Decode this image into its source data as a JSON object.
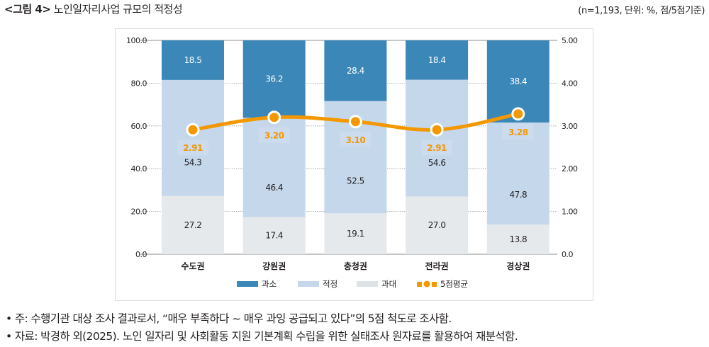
{
  "header": {
    "figure_label": "<그림 4>",
    "title": "노인일자리사업 규모의 적정성",
    "unit_note": "(n=1,193, 단위: %, 점/5점기준)"
  },
  "chart_data": {
    "type": "bar",
    "stacked": true,
    "title": "노인일자리사업 규모의 적정성",
    "categories": [
      "수도권",
      "강원권",
      "충청권",
      "전라권",
      "경상권"
    ],
    "series": [
      {
        "name": "과대",
        "values": [
          27.2,
          17.4,
          19.1,
          27.0,
          13.8
        ],
        "color": "#e6e9eb",
        "label_color": "#231f20"
      },
      {
        "name": "적정",
        "values": [
          54.3,
          46.4,
          52.5,
          54.6,
          47.8
        ],
        "color": "#c5d7eb",
        "label_color": "#231f20"
      },
      {
        "name": "과소",
        "values": [
          18.5,
          36.2,
          28.4,
          18.4,
          38.4
        ],
        "color": "#3a87b8",
        "label_color": "#ffffff"
      }
    ],
    "line_series": {
      "name": "5점평균",
      "values": [
        2.91,
        3.2,
        3.1,
        2.91,
        3.28
      ],
      "labels": [
        "2.91",
        "3.20",
        "3.10",
        "2.91",
        "3.28"
      ],
      "color": "#f39800",
      "axis": "right"
    },
    "y_left": {
      "range": [
        0,
        100
      ],
      "ticks": [
        "0.0",
        "20.0",
        "40.0",
        "60.0",
        "80.0",
        "100.0"
      ]
    },
    "y_right": {
      "range": [
        0,
        5
      ],
      "ticks": [
        "0.0",
        "1.00",
        "2.00",
        "3.00",
        "4.00",
        "5.00"
      ]
    },
    "grid": true,
    "legend": {
      "placement": "bottom",
      "items": [
        {
          "label": "과소",
          "color": "#3a87b8",
          "kind": "bar"
        },
        {
          "label": "적정",
          "color": "#c5d7eb",
          "kind": "bar"
        },
        {
          "label": "과대",
          "color": "#dde2e5",
          "kind": "bar"
        },
        {
          "label": "5점평균",
          "color": "#f39800",
          "kind": "line"
        }
      ]
    }
  },
  "notes": [
    "• 주: 수행기관 대상 조사 결과로서, “매우 부족하다 ~ 매우 과잉 공급되고 있다”의 5점 척도로 조사함.",
    "• 자료: 박경하 외(2025). 노인 일자리 및 사회활동 지원 기본계획 수립을 위한 실태조사 원자료를 활용하여 재분석함."
  ]
}
